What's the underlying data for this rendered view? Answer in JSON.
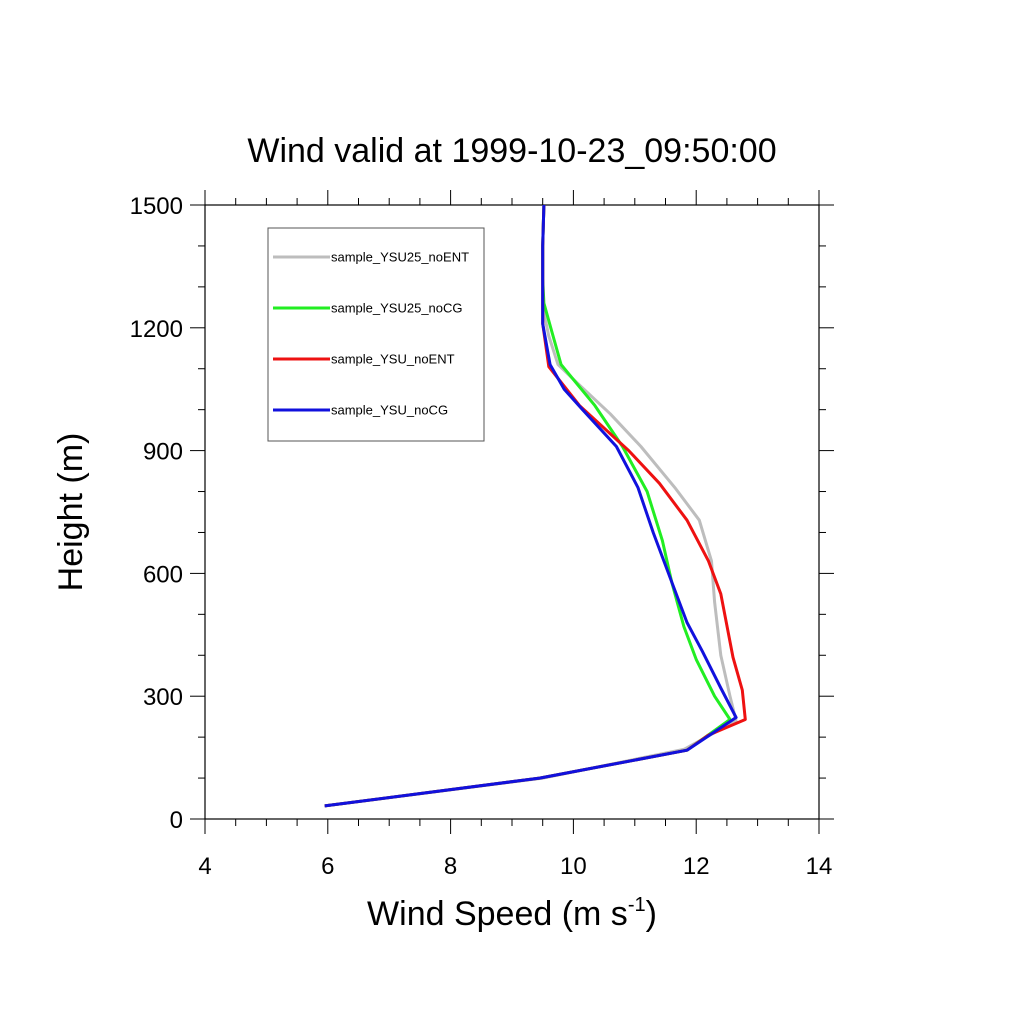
{
  "chart_data": {
    "type": "line",
    "title": "Wind valid at 1999-10-23_09:50:00",
    "xlabel_main": "Wind Speed (m s",
    "xlabel_sup": "-1",
    "xlabel_close": ")",
    "ylabel": "Height (m)",
    "xlim": [
      4,
      14
    ],
    "ylim": [
      0,
      1500
    ],
    "xticks": [
      4,
      6,
      8,
      10,
      12,
      14
    ],
    "yticks": [
      0,
      300,
      600,
      900,
      1200,
      1500
    ],
    "xminor_step": 0.5,
    "yminor_step": 100,
    "grid": false,
    "legend_position": "top-left",
    "series": [
      {
        "name": "sample_YSU25_noENT",
        "color": "#bdbdbd",
        "points": [
          [
            5.95,
            32
          ],
          [
            9.5,
            100
          ],
          [
            11.8,
            170
          ],
          [
            12.65,
            240
          ],
          [
            12.55,
            300
          ],
          [
            12.4,
            400
          ],
          [
            12.3,
            530
          ],
          [
            12.25,
            630
          ],
          [
            12.05,
            730
          ],
          [
            11.65,
            810
          ],
          [
            11.1,
            910
          ],
          [
            10.6,
            990
          ],
          [
            10.1,
            1060
          ],
          [
            9.75,
            1110
          ],
          [
            9.6,
            1180
          ],
          [
            9.5,
            1250
          ],
          [
            9.5,
            1320
          ],
          [
            9.5,
            1400
          ],
          [
            9.52,
            1500
          ]
        ]
      },
      {
        "name": "sample_YSU25_noCG",
        "color": "#22ee22",
        "points": [
          [
            5.95,
            32
          ],
          [
            9.45,
            100
          ],
          [
            11.85,
            168
          ],
          [
            12.55,
            243
          ],
          [
            12.3,
            300
          ],
          [
            12.0,
            390
          ],
          [
            11.8,
            470
          ],
          [
            11.6,
            580
          ],
          [
            11.45,
            680
          ],
          [
            11.2,
            800
          ],
          [
            10.8,
            910
          ],
          [
            10.35,
            1010
          ],
          [
            9.8,
            1110
          ],
          [
            9.65,
            1190
          ],
          [
            9.52,
            1260
          ],
          [
            9.5,
            1320
          ],
          [
            9.5,
            1400
          ],
          [
            9.52,
            1500
          ]
        ]
      },
      {
        "name": "sample_YSU_noENT",
        "color": "#ee1111",
        "points": [
          [
            5.95,
            32
          ],
          [
            9.45,
            100
          ],
          [
            11.85,
            168
          ],
          [
            12.2,
            205
          ],
          [
            12.8,
            243
          ],
          [
            12.75,
            315
          ],
          [
            12.6,
            395
          ],
          [
            12.4,
            550
          ],
          [
            12.2,
            630
          ],
          [
            11.85,
            730
          ],
          [
            11.4,
            820
          ],
          [
            10.9,
            900
          ],
          [
            10.1,
            1010
          ],
          [
            9.6,
            1105
          ],
          [
            9.5,
            1210
          ],
          [
            9.5,
            1320
          ],
          [
            9.5,
            1400
          ],
          [
            9.52,
            1500
          ]
        ]
      },
      {
        "name": "sample_YSU_noCG",
        "color": "#1111dd",
        "points": [
          [
            5.95,
            32
          ],
          [
            9.45,
            100
          ],
          [
            11.85,
            168
          ],
          [
            12.65,
            248
          ],
          [
            12.4,
            320
          ],
          [
            12.1,
            410
          ],
          [
            11.85,
            480
          ],
          [
            11.6,
            580
          ],
          [
            11.3,
            700
          ],
          [
            11.05,
            810
          ],
          [
            10.7,
            910
          ],
          [
            10.15,
            1000
          ],
          [
            9.85,
            1050
          ],
          [
            9.62,
            1110
          ],
          [
            9.5,
            1210
          ],
          [
            9.5,
            1320
          ],
          [
            9.5,
            1400
          ],
          [
            9.52,
            1500
          ]
        ]
      }
    ]
  }
}
